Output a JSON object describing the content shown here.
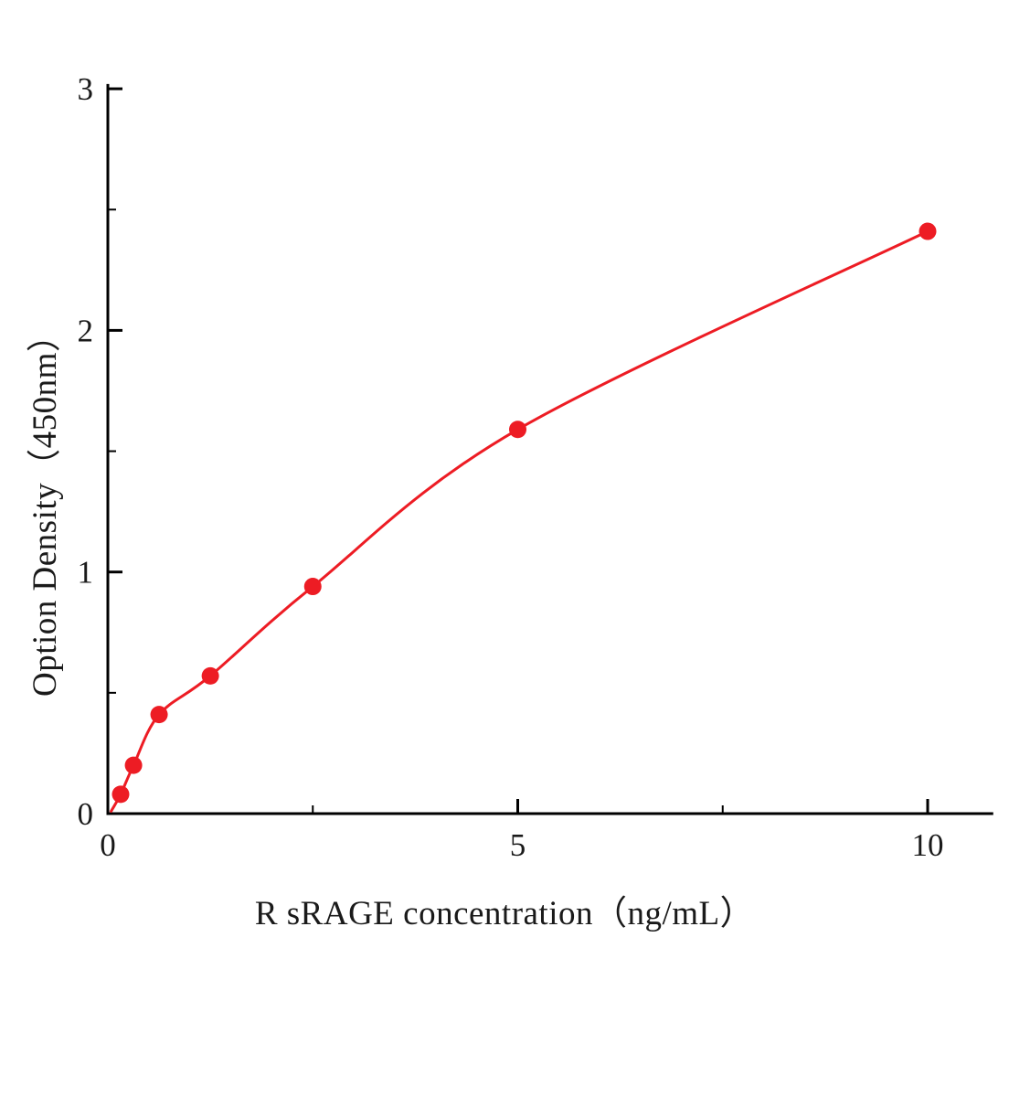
{
  "chart_data": {
    "type": "scatter",
    "title": "",
    "xlabel": "R sRAGE  concentration（ng/mL）",
    "ylabel": "Option Density（450nm）",
    "x": [
      0.156,
      0.313,
      0.625,
      1.25,
      2.5,
      5,
      10
    ],
    "y": [
      0.08,
      0.2,
      0.41,
      0.57,
      0.94,
      1.59,
      2.41
    ],
    "fit": "smooth curve through standard points starting at origin",
    "xlim": [
      0,
      10.8
    ],
    "ylim": [
      0,
      3.02
    ],
    "x_major_ticks": [
      0,
      5,
      10
    ],
    "x_minor_ticks": [
      2.5,
      7.5
    ],
    "y_major_ticks": [
      0,
      1,
      2,
      3
    ],
    "y_minor_ticks": [
      0.5,
      1.5,
      2.5
    ],
    "grid": "off",
    "legend": "none",
    "point_color": "#ed1c24",
    "line_color": "#ed1c24",
    "axis_color": "#000000"
  }
}
